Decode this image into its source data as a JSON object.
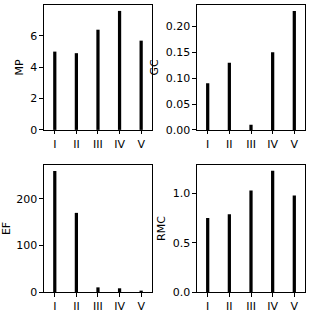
{
  "chart_data": [
    {
      "type": "bar",
      "ylabel": "MP",
      "categories": [
        "I",
        "II",
        "III",
        "IV",
        "V"
      ],
      "values": [
        5.0,
        4.9,
        6.4,
        7.6,
        5.7
      ],
      "color": "#000000",
      "ylim": [
        0,
        7.98
      ],
      "yticks": [
        0,
        2,
        4,
        6
      ]
    },
    {
      "type": "bar",
      "ylabel": "GC",
      "categories": [
        "I",
        "II",
        "III",
        "IV",
        "V"
      ],
      "values": [
        0.09,
        0.13,
        0.01,
        0.15,
        0.23
      ],
      "color": "#000000",
      "ylim": [
        0,
        0.2415
      ],
      "yticks": [
        {
          "value": 0,
          "label": "0.00"
        },
        {
          "value": 0.05,
          "label": "0.05"
        },
        {
          "value": 0.1,
          "label": "0.10"
        },
        {
          "value": 0.15,
          "label": "0.15"
        },
        {
          "value": 0.2,
          "label": "0.20"
        }
      ]
    },
    {
      "type": "bar",
      "ylabel": "EF",
      "categories": [
        "I",
        "II",
        "III",
        "IV",
        "V"
      ],
      "values": [
        260,
        170,
        10,
        8,
        3
      ],
      "color": "#000000",
      "ylim": [
        0,
        273
      ],
      "yticks": [
        0,
        100,
        200
      ]
    },
    {
      "type": "bar",
      "ylabel": "RMC",
      "categories": [
        "I",
        "II",
        "III",
        "IV",
        "V"
      ],
      "values": [
        0.75,
        0.79,
        1.03,
        1.23,
        0.98
      ],
      "color": "#000000",
      "ylim": [
        0,
        1.29
      ],
      "yticks": [
        {
          "value": 0,
          "label": "0.0"
        },
        {
          "value": 0.5,
          "label": "0.5"
        },
        {
          "value": 1,
          "label": "1.0"
        }
      ]
    }
  ]
}
